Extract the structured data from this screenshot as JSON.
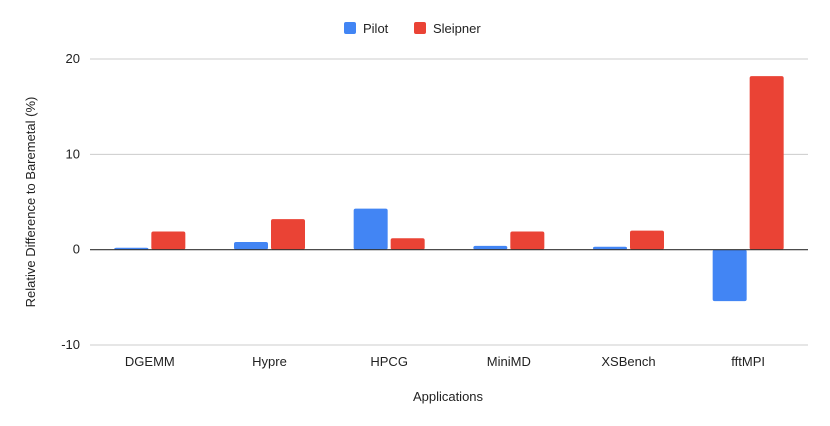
{
  "chart_data": {
    "type": "bar",
    "title": "",
    "xlabel": "Applications",
    "ylabel": "Relative Difference to Baremetal (%)",
    "categories": [
      "DGEMM",
      "Hypre",
      "HPCG",
      "MiniMD",
      "XSBench",
      "fftMPI"
    ],
    "series": [
      {
        "name": "Pilot",
        "color": "#4285f4",
        "values": [
          0.2,
          0.8,
          4.3,
          0.4,
          0.3,
          -5.4
        ]
      },
      {
        "name": "Sleipner",
        "color": "#ea4335",
        "values": [
          1.9,
          3.2,
          1.2,
          1.9,
          2.0,
          18.2
        ]
      }
    ],
    "ylim": [
      -10,
      20
    ],
    "yticks": [
      -10,
      0,
      10,
      20
    ],
    "grid": true,
    "legend_position": "top-center"
  }
}
